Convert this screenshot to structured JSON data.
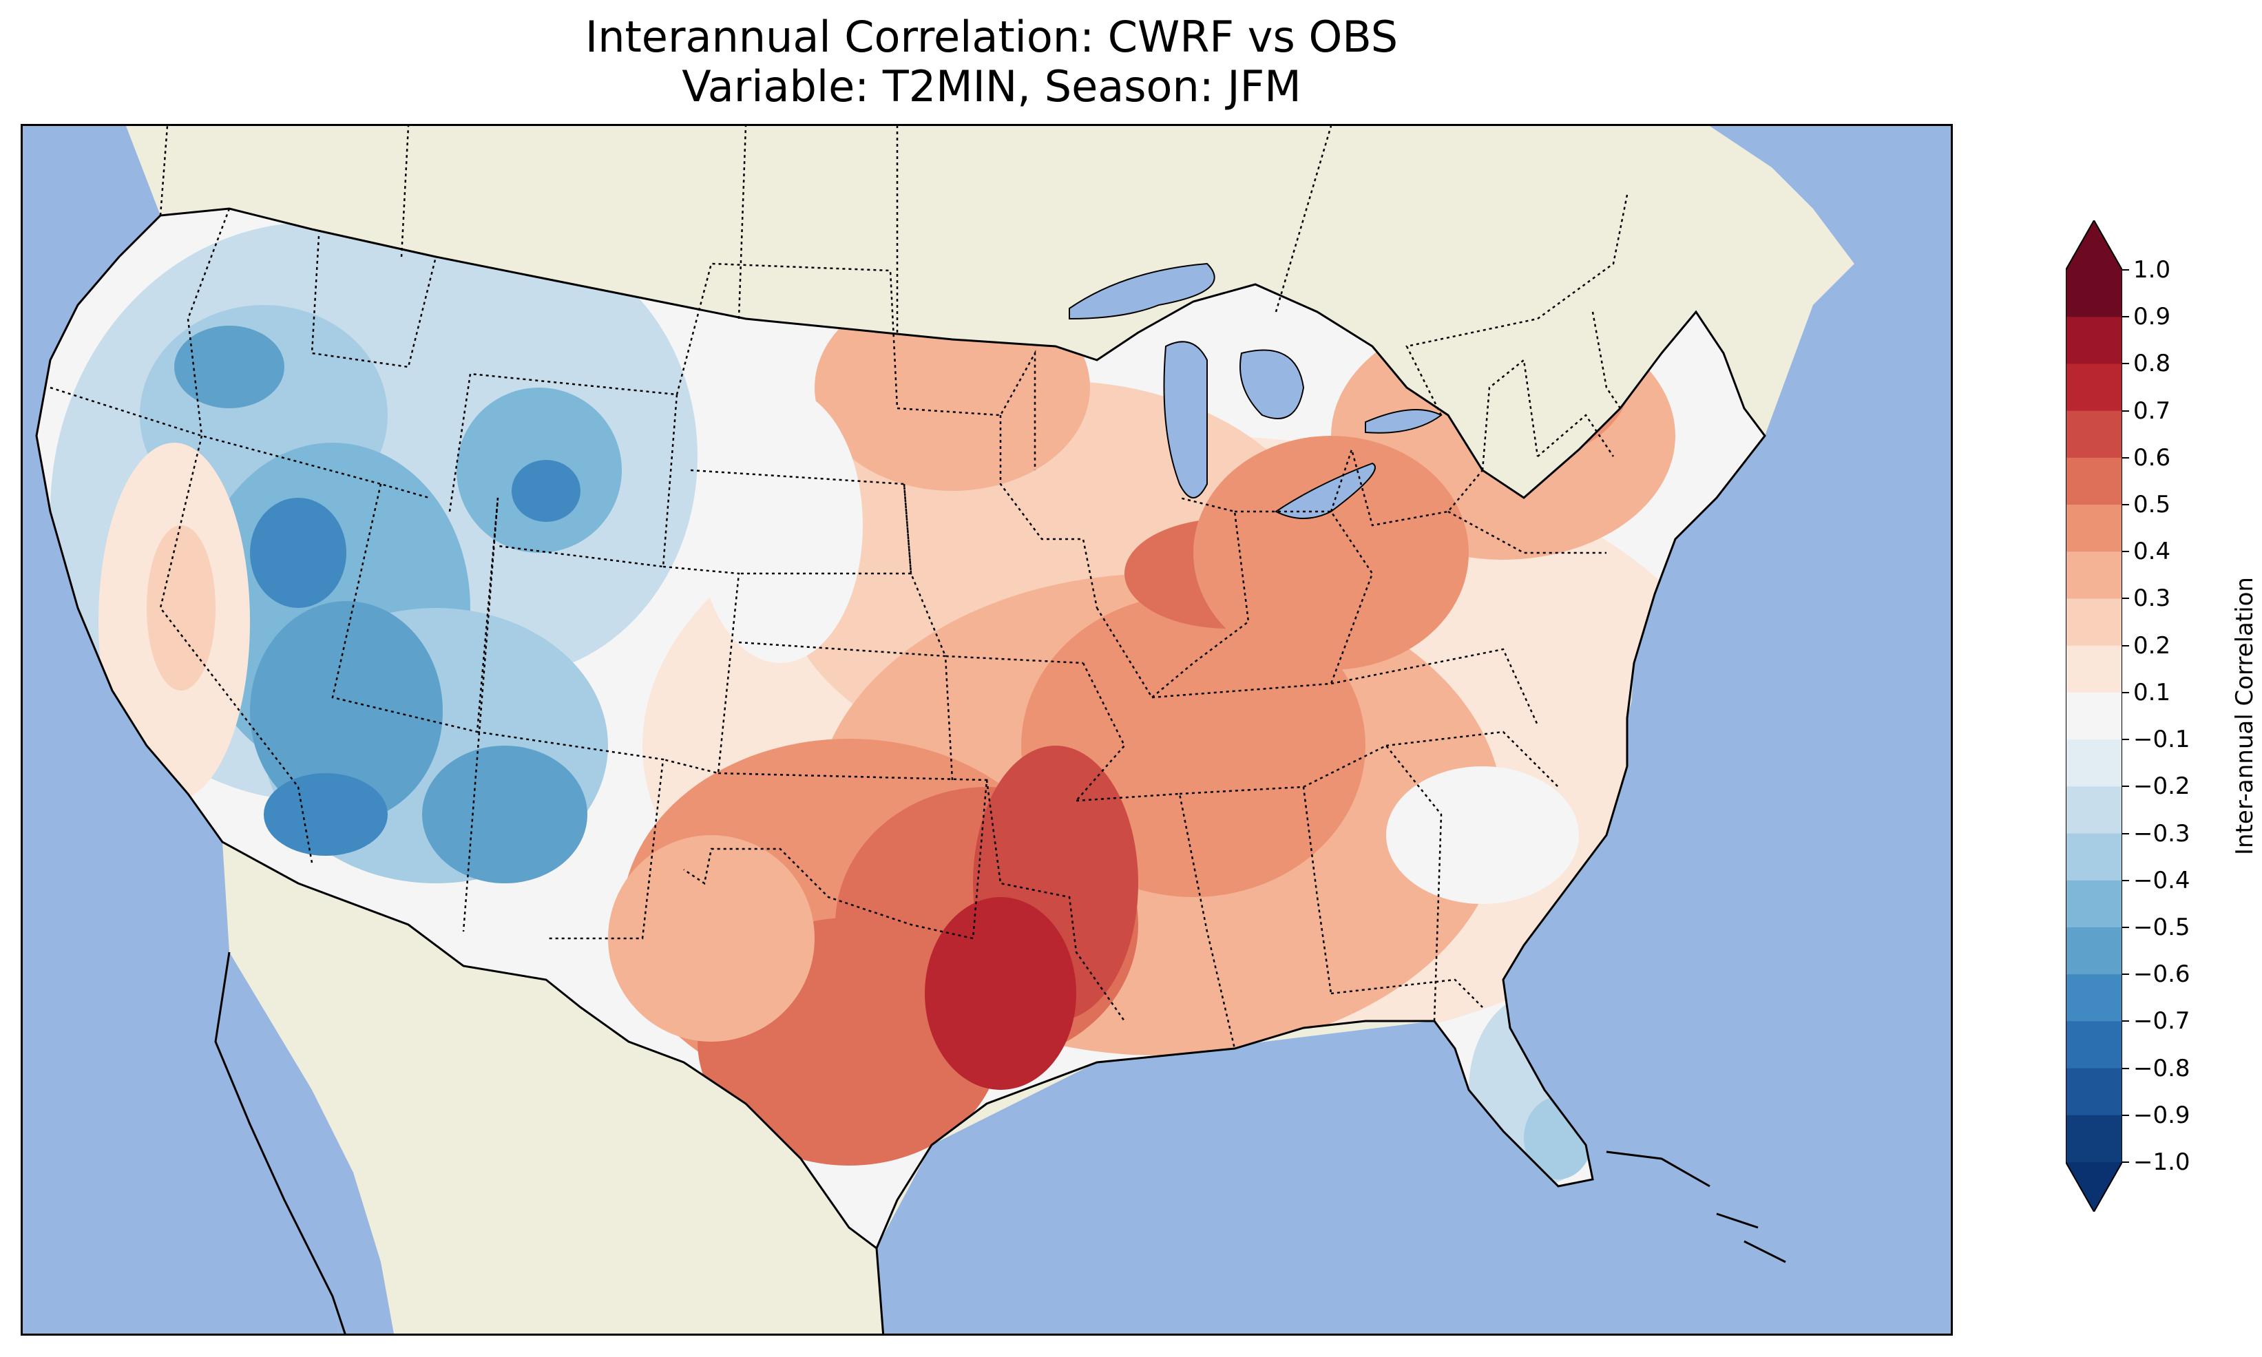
{
  "title_line1": "Interannual Correlation: CWRF vs OBS",
  "title_line2": "Variable: T2MIN, Season: JFM",
  "colorbar": {
    "label": "Inter-annual Correlation",
    "ticks": [
      "1.0",
      "0.9",
      "0.8",
      "0.7",
      "0.6",
      "0.5",
      "0.4",
      "0.3",
      "0.2",
      "0.1",
      "−0.1",
      "−0.2",
      "−0.3",
      "−0.4",
      "−0.5",
      "−0.6",
      "−0.7",
      "−0.8",
      "−0.9",
      "−1.0"
    ],
    "colors_top_to_bottom": [
      "#6d0a22",
      "#9d1628",
      "#b9262f",
      "#cc4b44",
      "#de7059",
      "#ec9373",
      "#f5b395",
      "#f9d0b9",
      "#fbe6da",
      "#f5f5f5",
      "#e1ecf3",
      "#c7ddeb",
      "#a6cde3",
      "#7eb8d9",
      "#5ea2cb",
      "#4189c1",
      "#2c6fb0",
      "#1d5799",
      "#103e7d"
    ],
    "extend_max_color": "#6d0a22",
    "extend_min_color": "#0a3170"
  },
  "map_colors": {
    "ocean": "#97b6e1",
    "land": "#efeddb",
    "lakes": "#97b6e1"
  }
}
